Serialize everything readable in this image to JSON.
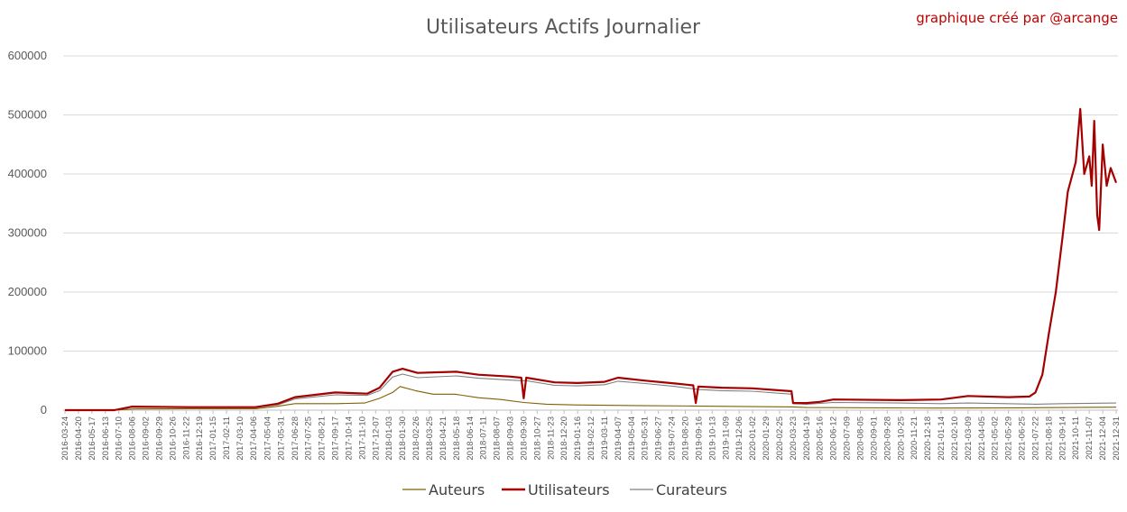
{
  "chart_data": {
    "type": "line",
    "title": "Utilisateurs Actifs Journalier",
    "credit": "graphique créé par @arcange",
    "xlabel": "",
    "ylabel": "",
    "ylim": [
      0,
      600000
    ],
    "y_ticks": [
      0,
      100000,
      200000,
      300000,
      400000,
      500000,
      600000
    ],
    "y_tick_labels": [
      "0",
      "100000",
      "200000",
      "300000",
      "400000",
      "500000",
      "600000"
    ],
    "grid": true,
    "legend_position": "bottom",
    "x_tick_labels": [
      "2016-03-24",
      "2016-04-20",
      "2016-05-17",
      "2016-06-13",
      "2016-07-10",
      "2016-08-06",
      "2016-09-02",
      "2016-09-29",
      "2016-10-26",
      "2016-11-22",
      "2016-12-19",
      "2017-01-15",
      "2017-02-11",
      "2017-03-10",
      "2017-04-06",
      "2017-05-04",
      "2017-05-31",
      "2017-06-28",
      "2017-07-25",
      "2017-08-21",
      "2017-09-17",
      "2017-10-14",
      "2017-11-10",
      "2017-12-07",
      "2018-01-03",
      "2018-01-30",
      "2018-02-26",
      "2018-03-25",
      "2018-04-21",
      "2018-05-18",
      "2018-06-14",
      "2018-07-11",
      "2018-08-07",
      "2018-09-03",
      "2018-09-30",
      "2018-10-27",
      "2018-11-23",
      "2018-12-20",
      "2019-01-16",
      "2019-02-12",
      "2019-03-11",
      "2019-04-07",
      "2019-05-04",
      "2019-05-31",
      "2019-06-27",
      "2019-07-24",
      "2019-08-20",
      "2019-09-16",
      "2019-10-13",
      "2019-11-09",
      "2019-12-06",
      "2020-01-02",
      "2020-01-29",
      "2020-02-25",
      "2020-03-23",
      "2020-04-19",
      "2020-05-16",
      "2020-06-12",
      "2020-07-09",
      "2020-08-05",
      "2020-09-01",
      "2020-09-28",
      "2020-10-25",
      "2020-11-21",
      "2020-12-18",
      "2021-01-14",
      "2021-02-10",
      "2021-03-09",
      "2021-04-05",
      "2021-05-02",
      "2021-05-29",
      "2021-06-25",
      "2021-07-22",
      "2021-08-18",
      "2021-09-14",
      "2021-10-11",
      "2021-11-07",
      "2021-12-04",
      "2021-12-31"
    ],
    "series": [
      {
        "name": "Auteurs",
        "color": "#7f6000",
        "points": [
          [
            "2016-03-24",
            0
          ],
          [
            "2016-07-01",
            0
          ],
          [
            "2016-08-10",
            2000
          ],
          [
            "2016-12-01",
            2500
          ],
          [
            "2017-04-10",
            2500
          ],
          [
            "2017-05-20",
            6000
          ],
          [
            "2017-06-28",
            11000
          ],
          [
            "2017-09-20",
            11000
          ],
          [
            "2017-11-15",
            12000
          ],
          [
            "2017-12-15",
            20000
          ],
          [
            "2018-01-10",
            30000
          ],
          [
            "2018-01-25",
            40000
          ],
          [
            "2018-02-25",
            33000
          ],
          [
            "2018-04-01",
            27000
          ],
          [
            "2018-05-15",
            27000
          ],
          [
            "2018-07-01",
            21000
          ],
          [
            "2018-08-15",
            18000
          ],
          [
            "2018-09-30",
            13000
          ],
          [
            "2018-11-15",
            10000
          ],
          [
            "2019-01-01",
            9000
          ],
          [
            "2019-06-01",
            7500
          ],
          [
            "2019-09-01",
            7000
          ],
          [
            "2020-01-01",
            6000
          ],
          [
            "2020-03-23",
            5500
          ],
          [
            "2020-04-19",
            4500
          ],
          [
            "2021-01-01",
            3500
          ],
          [
            "2021-07-01",
            4000
          ],
          [
            "2021-12-31",
            5000
          ]
        ]
      },
      {
        "name": "Utilisateurs",
        "color": "#a50000",
        "points": [
          [
            "2016-03-24",
            0
          ],
          [
            "2016-07-01",
            0
          ],
          [
            "2016-08-06",
            6000
          ],
          [
            "2016-12-01",
            5000
          ],
          [
            "2017-04-10",
            5000
          ],
          [
            "2017-05-25",
            11000
          ],
          [
            "2017-06-28",
            22000
          ],
          [
            "2017-09-17",
            30000
          ],
          [
            "2017-11-20",
            28000
          ],
          [
            "2017-12-15",
            38000
          ],
          [
            "2018-01-10",
            65000
          ],
          [
            "2018-01-30",
            70000
          ],
          [
            "2018-03-01",
            63000
          ],
          [
            "2018-05-18",
            65000
          ],
          [
            "2018-07-01",
            60000
          ],
          [
            "2018-09-01",
            57000
          ],
          [
            "2018-09-25",
            55000
          ],
          [
            "2018-09-30",
            20000
          ],
          [
            "2018-10-05",
            55000
          ],
          [
            "2018-12-01",
            47000
          ],
          [
            "2019-01-16",
            46000
          ],
          [
            "2019-03-11",
            48000
          ],
          [
            "2019-04-07",
            55000
          ],
          [
            "2019-06-01",
            50000
          ],
          [
            "2019-08-01",
            45000
          ],
          [
            "2019-09-05",
            42000
          ],
          [
            "2019-09-10",
            12000
          ],
          [
            "2019-09-15",
            40000
          ],
          [
            "2019-11-01",
            38000
          ],
          [
            "2020-01-01",
            37000
          ],
          [
            "2020-03-20",
            32000
          ],
          [
            "2020-03-23",
            12000
          ],
          [
            "2020-04-19",
            12000
          ],
          [
            "2020-05-16",
            14000
          ],
          [
            "2020-06-12",
            18000
          ],
          [
            "2020-10-25",
            17000
          ],
          [
            "2021-01-14",
            18000
          ],
          [
            "2021-03-09",
            24000
          ],
          [
            "2021-05-29",
            22000
          ],
          [
            "2021-07-10",
            23000
          ],
          [
            "2021-07-22",
            30000
          ],
          [
            "2021-08-05",
            60000
          ],
          [
            "2021-08-18",
            130000
          ],
          [
            "2021-09-01",
            200000
          ],
          [
            "2021-09-14",
            290000
          ],
          [
            "2021-09-25",
            370000
          ],
          [
            "2021-10-11",
            420000
          ],
          [
            "2021-10-20",
            510000
          ],
          [
            "2021-10-28",
            400000
          ],
          [
            "2021-11-07",
            430000
          ],
          [
            "2021-11-12",
            380000
          ],
          [
            "2021-11-17",
            490000
          ],
          [
            "2021-11-23",
            330000
          ],
          [
            "2021-11-27",
            305000
          ],
          [
            "2021-12-04",
            450000
          ],
          [
            "2021-12-12",
            380000
          ],
          [
            "2021-12-20",
            410000
          ],
          [
            "2021-12-31",
            385000
          ]
        ]
      },
      {
        "name": "Curateurs",
        "color": "#7f7f7f",
        "points": [
          [
            "2016-03-24",
            0
          ],
          [
            "2016-07-01",
            0
          ],
          [
            "2016-08-06",
            5000
          ],
          [
            "2016-12-01",
            4500
          ],
          [
            "2017-04-10",
            4500
          ],
          [
            "2017-05-25",
            9000
          ],
          [
            "2017-06-28",
            19000
          ],
          [
            "2017-09-17",
            26000
          ],
          [
            "2017-11-20",
            25000
          ],
          [
            "2017-12-15",
            33000
          ],
          [
            "2018-01-10",
            56000
          ],
          [
            "2018-01-30",
            61000
          ],
          [
            "2018-03-01",
            55000
          ],
          [
            "2018-05-18",
            58000
          ],
          [
            "2018-07-01",
            54000
          ],
          [
            "2018-09-01",
            51000
          ],
          [
            "2018-09-25",
            50000
          ],
          [
            "2018-10-05",
            50000
          ],
          [
            "2018-12-01",
            42000
          ],
          [
            "2019-01-16",
            41000
          ],
          [
            "2019-03-11",
            43000
          ],
          [
            "2019-04-07",
            49000
          ],
          [
            "2019-06-01",
            45000
          ],
          [
            "2019-08-01",
            40000
          ],
          [
            "2019-09-15",
            35000
          ],
          [
            "2019-11-01",
            33000
          ],
          [
            "2020-01-01",
            32000
          ],
          [
            "2020-03-20",
            27000
          ],
          [
            "2020-03-23",
            11000
          ],
          [
            "2020-04-19",
            10000
          ],
          [
            "2020-06-12",
            13000
          ],
          [
            "2020-10-25",
            12000
          ],
          [
            "2021-01-14",
            11000
          ],
          [
            "2021-03-09",
            12000
          ],
          [
            "2021-07-22",
            10000
          ],
          [
            "2021-09-14",
            11000
          ],
          [
            "2021-12-31",
            12000
          ]
        ]
      }
    ]
  }
}
